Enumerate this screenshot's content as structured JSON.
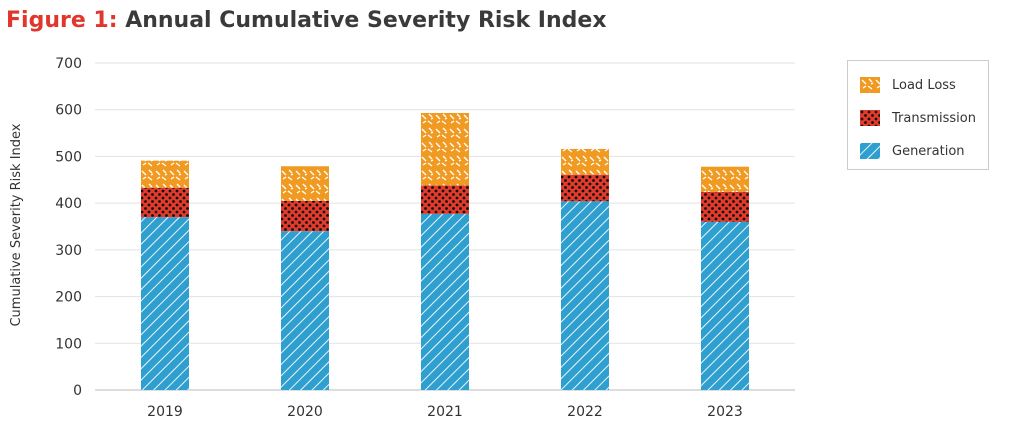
{
  "title_prefix": "Figure 1:",
  "title": "Annual Cumulative Severity Risk Index",
  "chart_data": {
    "type": "bar",
    "stacked": true,
    "categories": [
      "2019",
      "2020",
      "2021",
      "2022",
      "2023"
    ],
    "series": [
      {
        "name": "Generation",
        "values": [
          370,
          340,
          377,
          404,
          360
        ],
        "color": "#2f9fd0",
        "pattern": "hatch"
      },
      {
        "name": "Transmission",
        "values": [
          63,
          65,
          61,
          57,
          64
        ],
        "color": "#e23a2b",
        "pattern": "dots"
      },
      {
        "name": "Load Loss",
        "values": [
          58,
          74,
          155,
          55,
          54
        ],
        "color": "#f09a22",
        "pattern": "sprinkles"
      }
    ],
    "ylabel": "Cumulative Severity Risk Index",
    "xlabel": "",
    "ylim": [
      0,
      700
    ],
    "yticks": [
      "0",
      "100",
      "200",
      "300",
      "400",
      "500",
      "600",
      "700"
    ],
    "grid": true,
    "legend": {
      "position": "right",
      "order": [
        "Load Loss",
        "Transmission",
        "Generation"
      ]
    }
  }
}
